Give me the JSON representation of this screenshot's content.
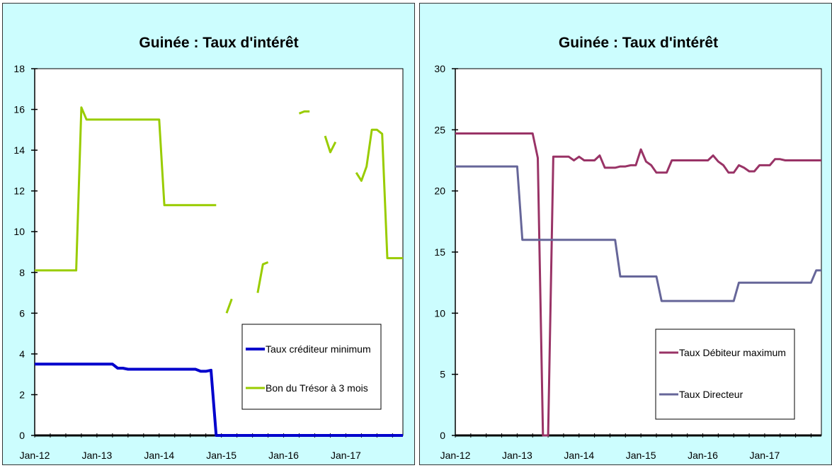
{
  "colors": {
    "panel_bg": "#ccfdfe",
    "plot_bg": "#ffffff"
  },
  "chart_data": [
    {
      "type": "line",
      "title": "Guinée : Taux d'intérêt",
      "xlabel": "",
      "ylabel": "",
      "x_ticks": [
        "Jan-12",
        "Jan-13",
        "Jan-14",
        "Jan-15",
        "Jan-16",
        "Jan-17"
      ],
      "x_range": [
        0,
        71
      ],
      "ylim": [
        0,
        18
      ],
      "y_ticks": [
        "0",
        "2",
        "4",
        "6",
        "8",
        "10",
        "12",
        "14",
        "16",
        "18"
      ],
      "grid": false,
      "legend": "bottom-right",
      "series": [
        {
          "name": "Taux créditeur minimum",
          "color": "#0000cc",
          "width": 4,
          "values": [
            3.5,
            3.5,
            3.5,
            3.5,
            3.5,
            3.5,
            3.5,
            3.5,
            3.5,
            3.5,
            3.5,
            3.5,
            3.5,
            3.5,
            3.5,
            3.5,
            3.3,
            3.3,
            3.25,
            3.25,
            3.25,
            3.25,
            3.25,
            3.25,
            3.25,
            3.25,
            3.25,
            3.25,
            3.25,
            3.25,
            3.25,
            3.25,
            3.15,
            3.15,
            3.2,
            0,
            0,
            0,
            0,
            0,
            0,
            0,
            0,
            0,
            0,
            0,
            0,
            0,
            0,
            0,
            0,
            0,
            0,
            0,
            0,
            0,
            0,
            0,
            0,
            0,
            0,
            0,
            0,
            0,
            0,
            0,
            0,
            0,
            0,
            0,
            0,
            0
          ]
        },
        {
          "name": "Bon du Trésor à 3 mois",
          "color": "#99cc00",
          "width": 3,
          "values": [
            8.1,
            8.1,
            8.1,
            8.1,
            8.1,
            8.1,
            8.1,
            8.1,
            8.1,
            16.1,
            15.5,
            15.5,
            15.5,
            15.5,
            15.5,
            15.5,
            15.5,
            15.5,
            15.5,
            15.5,
            15.5,
            15.5,
            15.5,
            15.5,
            15.5,
            11.3,
            11.3,
            11.3,
            11.3,
            11.3,
            11.3,
            11.3,
            11.3,
            11.3,
            11.3,
            11.3,
            null,
            6.0,
            6.7,
            null,
            null,
            null,
            null,
            7.0,
            8.4,
            8.5,
            null,
            null,
            null,
            null,
            null,
            15.8,
            15.9,
            15.9,
            null,
            null,
            14.7,
            13.9,
            14.4,
            null,
            null,
            null,
            12.9,
            12.5,
            13.2,
            15.0,
            15.0,
            14.8,
            8.7,
            8.7,
            8.7,
            8.7
          ]
        }
      ]
    },
    {
      "type": "line",
      "title": "Guinée : Taux d'intérêt",
      "xlabel": "",
      "ylabel": "",
      "x_ticks": [
        "Jan-12",
        "Jan-13",
        "Jan-14",
        "Jan-15",
        "Jan-16",
        "Jan-17"
      ],
      "x_range": [
        0,
        71
      ],
      "ylim": [
        0,
        30
      ],
      "y_ticks": [
        "0",
        "5",
        "10",
        "15",
        "20",
        "25",
        "30"
      ],
      "grid": false,
      "legend": "bottom-right",
      "series": [
        {
          "name": "Taux Débiteur maximum",
          "color": "#993366",
          "width": 3,
          "values": [
            24.7,
            24.7,
            24.7,
            24.7,
            24.7,
            24.7,
            24.7,
            24.7,
            24.7,
            24.7,
            24.7,
            24.7,
            24.7,
            24.7,
            24.7,
            24.7,
            22.7,
            0,
            0,
            22.8,
            22.8,
            22.8,
            22.8,
            22.5,
            22.8,
            22.5,
            22.5,
            22.5,
            22.9,
            21.9,
            21.9,
            21.9,
            22.0,
            22.0,
            22.1,
            22.1,
            23.4,
            22.4,
            22.1,
            21.5,
            21.5,
            21.5,
            22.5,
            22.5,
            22.5,
            22.5,
            22.5,
            22.5,
            22.5,
            22.5,
            22.9,
            22.4,
            22.1,
            21.5,
            21.5,
            22.1,
            21.9,
            21.6,
            21.6,
            22.1,
            22.1,
            22.1,
            22.6,
            22.6,
            22.5,
            22.5,
            22.5,
            22.5,
            22.5,
            22.5,
            22.5,
            22.5
          ]
        },
        {
          "name": "Taux Directeur",
          "color": "#666699",
          "width": 3,
          "values": [
            22,
            22,
            22,
            22,
            22,
            22,
            22,
            22,
            22,
            22,
            22,
            22,
            22,
            16,
            16,
            16,
            16,
            16,
            16,
            16,
            16,
            16,
            16,
            16,
            16,
            16,
            16,
            16,
            16,
            16,
            16,
            16,
            13,
            13,
            13,
            13,
            13,
            13,
            13,
            13,
            11,
            11,
            11,
            11,
            11,
            11,
            11,
            11,
            11,
            11,
            11,
            11,
            11,
            11,
            11,
            12.5,
            12.5,
            12.5,
            12.5,
            12.5,
            12.5,
            12.5,
            12.5,
            12.5,
            12.5,
            12.5,
            12.5,
            12.5,
            12.5,
            12.5,
            13.5,
            13.5
          ]
        }
      ]
    }
  ]
}
